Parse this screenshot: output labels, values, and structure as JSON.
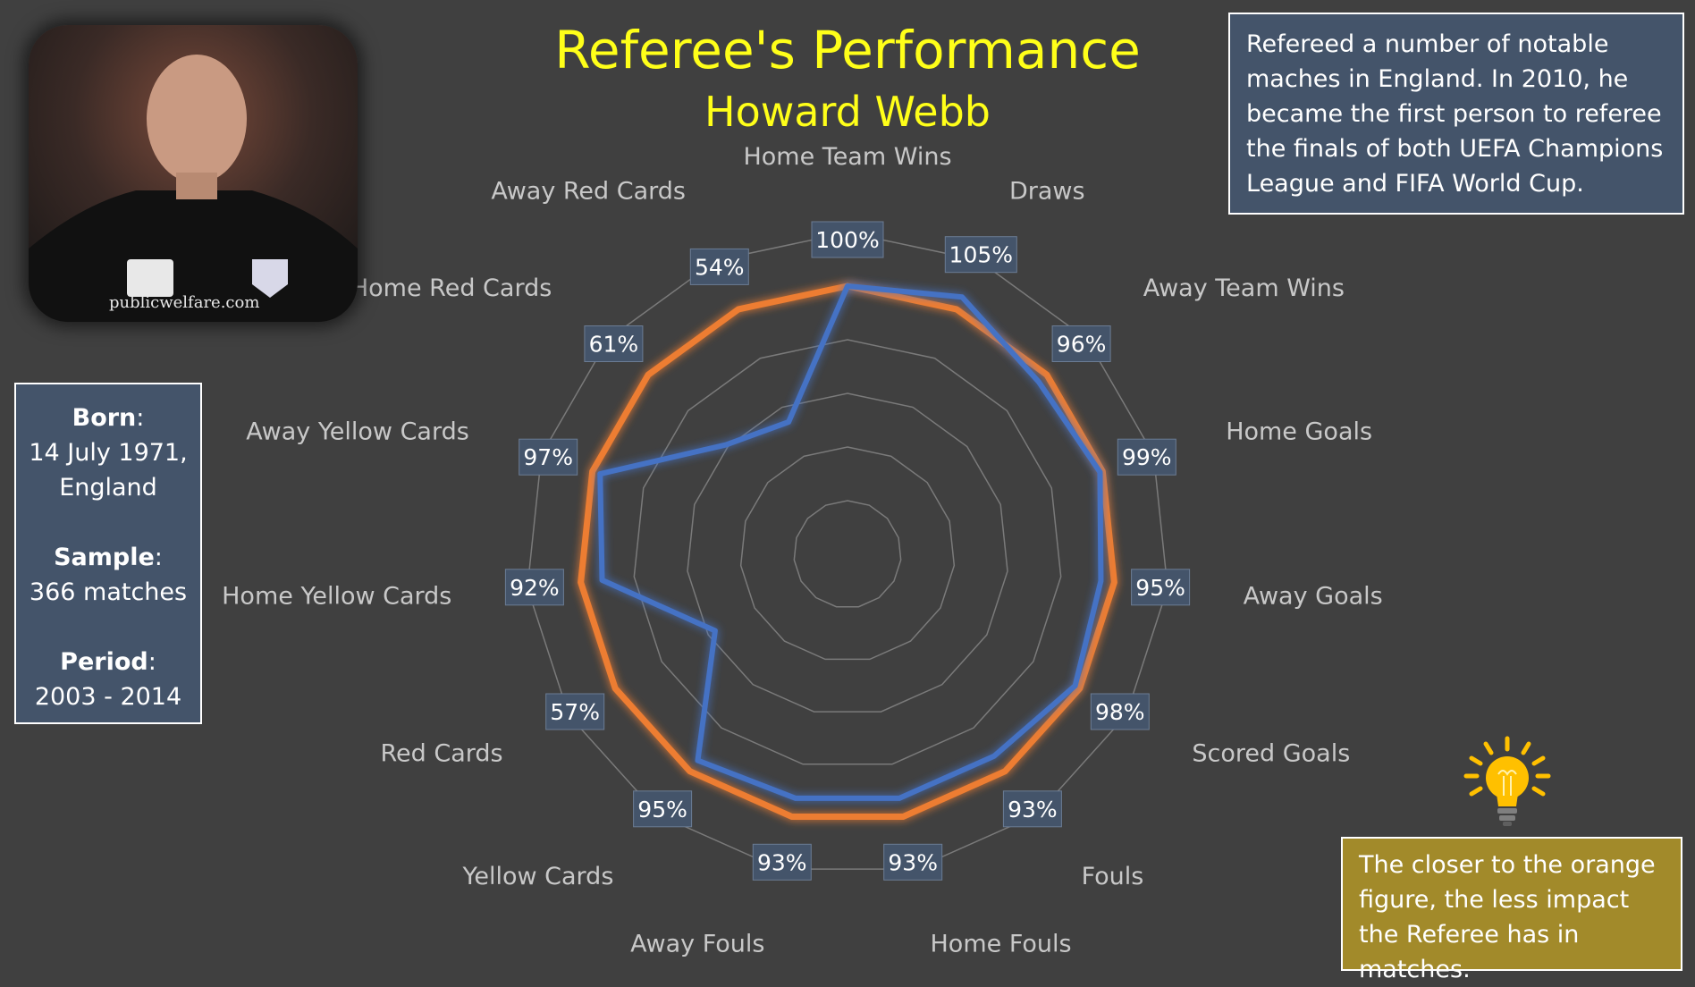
{
  "title": "Referee's Performance",
  "subtitle": "Howard Webb",
  "photo": {
    "watermark": "publicwelfare.com"
  },
  "info": {
    "born_label": "Born",
    "born_value_line1": "14 July 1971,",
    "born_value_line2": "England",
    "sample_label": "Sample",
    "sample_value": "366 matches",
    "period_label": "Period",
    "period_value": "2003 - 2014"
  },
  "note": "Refereed a number of notable maches in England. In 2010, he became the first person to referee the finals of both UEFA Champions League and FIFA World Cup.",
  "tip": "The closer to the orange figure, the less impact the Referee has in matches.",
  "icons": {
    "tip": "lightbulb-icon"
  },
  "colors": {
    "background": "#404040",
    "title": "#ffff19",
    "referee_series": "#4472c4",
    "baseline_series": "#ed7d31",
    "label_box": "#44546a",
    "tip_box": "#a28a2a"
  },
  "chart_data": {
    "type": "radar",
    "categories": [
      "Home Team Wins",
      "Draws",
      "Away Team Wins",
      "Home Goals",
      "Away Goals",
      "Scored Goals",
      "Fouls",
      "Home Fouls",
      "Away Fouls",
      "Yellow Cards",
      "Red Cards",
      "Home Yellow Cards",
      "Away Yellow Cards",
      "Home Red Cards",
      "Away Red Cards"
    ],
    "series": [
      {
        "values": [
          100,
          105,
          96,
          99,
          95,
          98,
          93,
          93,
          93,
          95,
          57,
          92,
          97,
          61,
          54
        ],
        "color": "#4472c4"
      },
      {
        "values": [
          100,
          100,
          100,
          100,
          100,
          100,
          100,
          100,
          100,
          100,
          100,
          100,
          100,
          100,
          100
        ],
        "color": "#ed7d31"
      }
    ],
    "data_labels": [
      "100%",
      "105%",
      "96%",
      "99%",
      "95%",
      "98%",
      "93%",
      "93%",
      "93%",
      "95%",
      "57%",
      "92%",
      "97%",
      "61%",
      "54%"
    ],
    "rlim": [
      0,
      120
    ],
    "grid": true,
    "legend": "none"
  }
}
